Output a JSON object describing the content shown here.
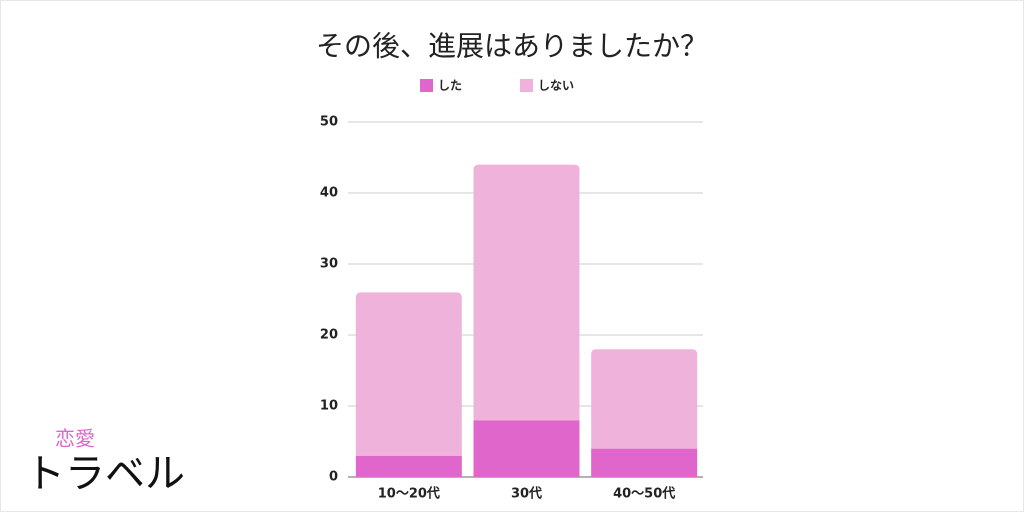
{
  "chart_data": {
    "type": "stacked_bar",
    "title": "その後、進展はありましたか？",
    "categories": [
      "10〜20代",
      "30代",
      "40〜50代"
    ],
    "series": [
      {
        "name": "した",
        "color": "#e066cc",
        "values": [
          3,
          8,
          4
        ]
      },
      {
        "name": "しない",
        "color": "#efb3db",
        "values": [
          23,
          36,
          14
        ]
      }
    ],
    "ylim": [
      0,
      50
    ],
    "yticks": [
      0,
      10,
      20,
      30,
      40,
      50
    ],
    "grid": true,
    "legend": "top"
  },
  "brand": {
    "small": "恋愛",
    "large": "トラベル"
  }
}
